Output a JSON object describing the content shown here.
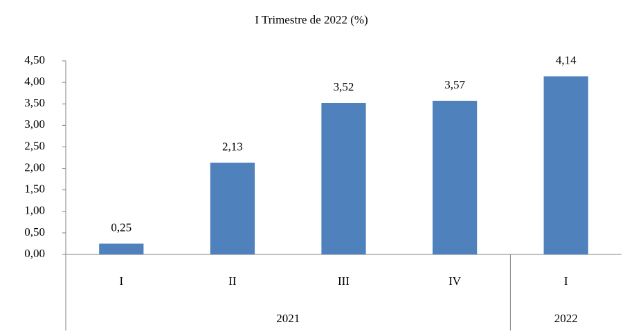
{
  "chart_data": {
    "type": "bar",
    "title": "I Trimestre de 2022 (%)",
    "categories": [
      "I",
      "II",
      "III",
      "IV",
      "I"
    ],
    "groups": [
      "2021",
      "2021",
      "2021",
      "2021",
      "2022"
    ],
    "values": [
      0.25,
      2.13,
      3.52,
      3.57,
      4.14
    ],
    "value_labels": [
      "0,25",
      "2,13",
      "3,52",
      "3,57",
      "4,14"
    ],
    "color": "#4f81bd",
    "ylim": [
      0,
      4.5
    ],
    "yticks": [
      {
        "value": 0,
        "label": "0,00"
      },
      {
        "value": 0.5,
        "label": "0,50"
      },
      {
        "value": 1,
        "label": "1,00"
      },
      {
        "value": 1.5,
        "label": "1,50"
      },
      {
        "value": 2,
        "label": "2,00"
      },
      {
        "value": 2.5,
        "label": "2,50"
      },
      {
        "value": 3,
        "label": "3,00"
      },
      {
        "value": 3.5,
        "label": "3,50"
      },
      {
        "value": 4,
        "label": "4,00"
      },
      {
        "value": 4.5,
        "label": "4,50"
      }
    ],
    "grid": false
  }
}
